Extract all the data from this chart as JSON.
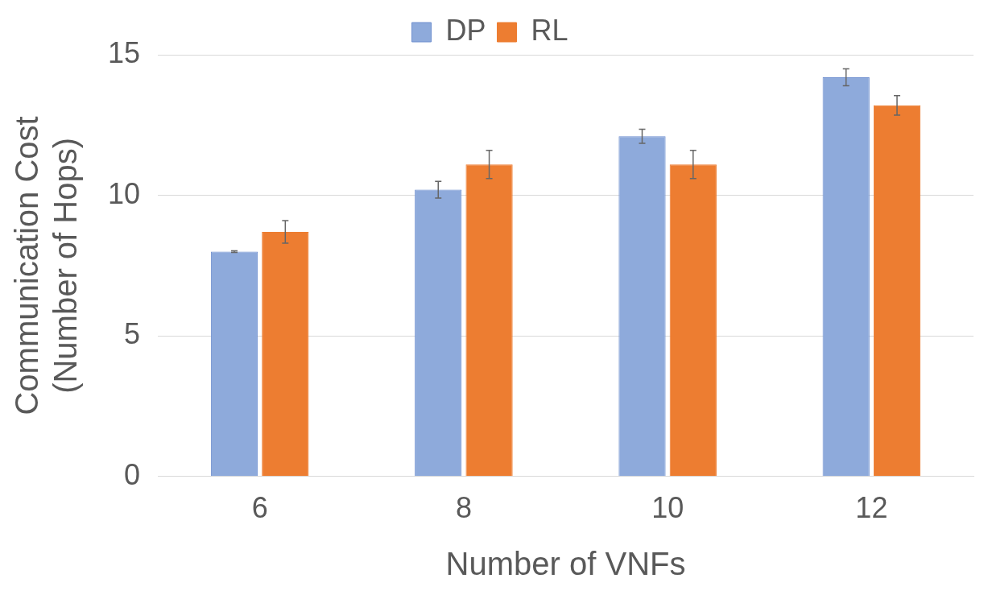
{
  "chart_data": {
    "type": "bar",
    "xlabel": "Number of VNFs",
    "ylabel": "Communication Cost\n(Number of Hops)",
    "categories": [
      "6",
      "8",
      "10",
      "12"
    ],
    "series": [
      {
        "name": "DP",
        "color": "#8eaadb",
        "values": [
          8.0,
          10.2,
          12.1,
          14.2
        ],
        "errors": [
          0.03,
          0.3,
          0.25,
          0.3
        ]
      },
      {
        "name": "RL",
        "color": "#ed7d31",
        "values": [
          8.7,
          11.1,
          11.1,
          13.2
        ],
        "errors": [
          0.4,
          0.5,
          0.5,
          0.35
        ]
      }
    ],
    "ylim": [
      0,
      15
    ],
    "yticks": [
      0,
      5,
      10,
      15
    ],
    "grid": "y",
    "legend": "top"
  }
}
